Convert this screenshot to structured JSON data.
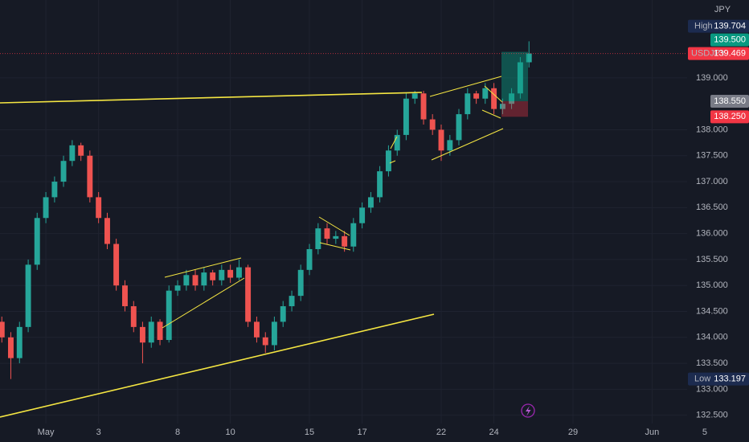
{
  "chart_data": {
    "type": "candlestick",
    "currency": "JPY",
    "xlim": [
      -1.74,
      24.33
    ],
    "ylim": [
      132.34,
      140.5
    ],
    "xticks": [
      {
        "value": 0,
        "label": "May"
      },
      {
        "value": 2,
        "label": "3"
      },
      {
        "value": 5,
        "label": "8"
      },
      {
        "value": 7,
        "label": "10"
      },
      {
        "value": 10,
        "label": "15"
      },
      {
        "value": 12,
        "label": "17"
      },
      {
        "value": 15,
        "label": "22"
      },
      {
        "value": 17,
        "label": "24"
      },
      {
        "value": 20,
        "label": "29"
      },
      {
        "value": 23,
        "label": "Jun"
      },
      {
        "value": 25,
        "label": "5"
      }
    ],
    "yticks": [
      {
        "value": 132.5,
        "label": "132.500"
      },
      {
        "value": 133,
        "label": "133.000"
      },
      {
        "value": 133.5,
        "label": "133.500"
      },
      {
        "value": 134,
        "label": "134.000"
      },
      {
        "value": 134.5,
        "label": "134.500"
      },
      {
        "value": 135,
        "label": "135.000"
      },
      {
        "value": 135.5,
        "label": "135.500"
      },
      {
        "value": 136,
        "label": "136.000"
      },
      {
        "value": 136.5,
        "label": "136.500"
      },
      {
        "value": 137,
        "label": "137.000"
      },
      {
        "value": 137.5,
        "label": "137.500"
      },
      {
        "value": 138,
        "label": "138.000"
      },
      {
        "value": 139,
        "label": "139.000"
      }
    ],
    "grid": true,
    "up_color": "#26a69a",
    "down_color": "#ef5350",
    "x": [
      -1.67,
      -1.33,
      -1,
      -0.67,
      -0.33,
      0,
      0.33,
      0.67,
      1,
      1.33,
      1.67,
      2,
      2.33,
      2.67,
      3,
      3.33,
      3.67,
      4,
      4.33,
      4.67,
      5,
      5.33,
      5.67,
      6,
      6.33,
      6.67,
      7,
      7.33,
      7.67,
      8,
      8.33,
      8.67,
      9,
      9.33,
      9.67,
      10,
      10.33,
      10.67,
      11,
      11.33,
      11.67,
      12,
      12.33,
      12.67,
      13,
      13.33,
      13.67,
      14,
      14.33,
      14.67,
      15,
      15.33,
      15.67,
      16,
      16.33,
      16.67,
      17,
      17.33,
      17.67,
      18,
      18.33
    ],
    "open": [
      134.3,
      134.0,
      133.6,
      134.2,
      135.4,
      136.3,
      136.7,
      137.0,
      137.4,
      137.7,
      137.5,
      136.7,
      136.3,
      135.8,
      135.0,
      134.6,
      134.2,
      133.9,
      134.3,
      133.95,
      134.9,
      135.0,
      135.2,
      135.0,
      135.25,
      135.1,
      135.3,
      135.15,
      135.35,
      134.3,
      134.0,
      133.85,
      134.3,
      134.6,
      134.8,
      135.3,
      135.7,
      136.1,
      135.9,
      135.95,
      135.75,
      136.2,
      136.5,
      136.7,
      137.2,
      137.6,
      137.9,
      138.6,
      138.7,
      138.2,
      138.0,
      137.6,
      137.8,
      138.3,
      138.7,
      138.6,
      138.8,
      138.4,
      138.5,
      138.7,
      139.3
    ],
    "high": [
      134.4,
      134.1,
      134.3,
      135.5,
      136.4,
      136.8,
      137.1,
      137.5,
      137.8,
      137.75,
      137.6,
      136.8,
      136.4,
      135.9,
      135.1,
      134.7,
      134.3,
      134.4,
      134.35,
      135.0,
      135.1,
      135.3,
      135.3,
      135.35,
      135.3,
      135.4,
      135.4,
      135.5,
      135.4,
      134.4,
      134.1,
      134.4,
      134.7,
      134.9,
      135.4,
      135.8,
      136.2,
      136.2,
      136.05,
      136.05,
      136.3,
      136.6,
      136.8,
      137.3,
      137.7,
      138.0,
      138.7,
      138.75,
      138.75,
      138.3,
      138.1,
      137.9,
      138.4,
      138.8,
      138.75,
      138.9,
      138.9,
      138.6,
      138.8,
      139.4,
      139.704
    ],
    "low": [
      133.9,
      133.197,
      133.5,
      134.1,
      135.3,
      136.2,
      136.6,
      136.9,
      137.3,
      137.4,
      136.6,
      136.2,
      135.7,
      134.9,
      134.5,
      134.1,
      133.5,
      133.8,
      133.85,
      133.9,
      134.8,
      134.9,
      134.9,
      134.9,
      135.0,
      135.0,
      135.05,
      135.1,
      134.2,
      133.9,
      133.7,
      133.75,
      134.2,
      134.5,
      134.7,
      135.2,
      135.6,
      135.8,
      135.8,
      135.65,
      135.65,
      136.1,
      136.4,
      136.6,
      137.1,
      137.5,
      137.8,
      138.5,
      138.1,
      137.9,
      137.4,
      137.5,
      137.7,
      138.2,
      138.5,
      138.5,
      138.3,
      138.3,
      138.4,
      138.6,
      139.2
    ],
    "close": [
      134.0,
      133.6,
      134.2,
      135.4,
      136.3,
      136.7,
      137.0,
      137.4,
      137.7,
      137.5,
      136.7,
      136.3,
      135.8,
      135.0,
      134.6,
      134.2,
      133.9,
      134.3,
      133.95,
      134.9,
      135.0,
      135.2,
      135.0,
      135.25,
      135.1,
      135.3,
      135.15,
      135.35,
      134.3,
      134.0,
      133.85,
      134.3,
      134.6,
      134.8,
      135.3,
      135.7,
      136.1,
      135.9,
      135.95,
      135.75,
      136.2,
      136.5,
      136.7,
      137.2,
      137.6,
      137.9,
      138.6,
      138.7,
      138.2,
      138.0,
      137.6,
      137.8,
      138.3,
      138.7,
      138.6,
      138.8,
      138.4,
      138.5,
      138.7,
      139.3,
      139.469
    ],
    "price_labels": [
      {
        "name": "High",
        "price": 139.704,
        "color": "#1c2b4f"
      },
      {
        "price": {
          "value": 139.5,
          "label": "139.500"
        },
        "color": "#089981"
      },
      {
        "name": "USDJPY",
        "price": 139.469,
        "color": "#f23645"
      },
      {
        "price": {
          "value": 138.55,
          "label": "138.550"
        },
        "color": "#787b86"
      },
      {
        "price": {
          "value": 138.25,
          "label": "138.250"
        },
        "color": "#f23645"
      },
      {
        "name": "Low",
        "price": 133.197,
        "color": "#1c2b4f"
      }
    ]
  }
}
